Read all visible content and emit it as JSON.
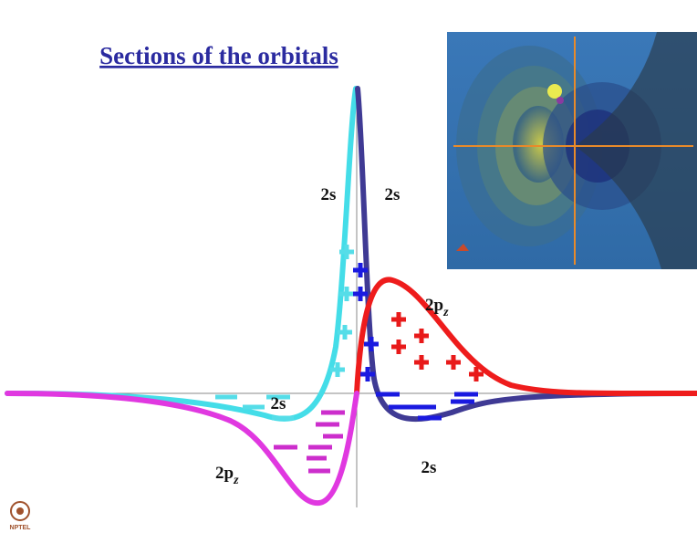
{
  "header": {
    "title": "Sections of the orbitals"
  },
  "labels": [
    {
      "main": "2s"
    },
    {
      "main": "2s"
    },
    {
      "main": "2p",
      "sub": "z"
    },
    {
      "main": "2s"
    },
    {
      "main": "2s"
    },
    {
      "main": "2p",
      "sub": "z"
    }
  ],
  "footer": {
    "logo": "NPTEL"
  }
}
